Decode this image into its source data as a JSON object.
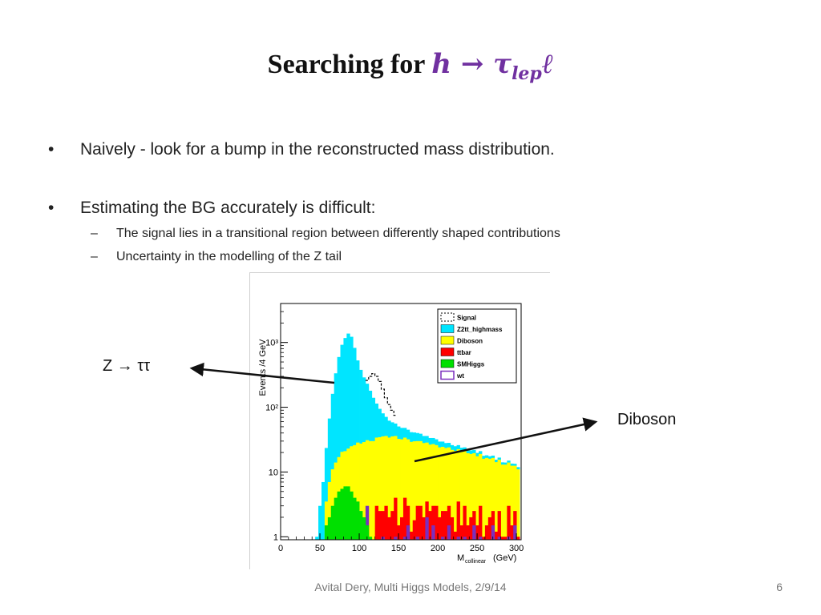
{
  "slide": {
    "title_text": "Searching for ",
    "title_math": "h → τ",
    "title_math_sub": "lep",
    "title_math_tail": "ℓ",
    "bullets": [
      {
        "marker": "•",
        "text": "Naively - look for a bump in the reconstructed mass distribution."
      },
      {
        "marker": "•",
        "text": "Estimating the BG accurately is difficult:"
      }
    ],
    "sub_bullets": [
      {
        "marker": "–",
        "text": "The signal lies in a transitional region between differently shaped contributions"
      },
      {
        "marker": "–",
        "text": "Uncertainty in the modelling of the Z tail"
      }
    ],
    "callout_left": "Z → ττ",
    "callout_right": "Diboson",
    "footer": "Avital Dery, Multi Higgs Models, 2/9/14",
    "page_number": "6"
  },
  "chart_data": {
    "type": "bar",
    "stacked": true,
    "ylabel": "Events /4 GeV",
    "xlabel_main": "M",
    "xlabel_sub": "collinear",
    "xlabel_unit": "(GeV)",
    "y_scale": "log",
    "xlim": [
      0,
      306
    ],
    "ylim": [
      0.9,
      4000
    ],
    "x_ticks": [
      0,
      50,
      100,
      150,
      200,
      250,
      300
    ],
    "y_ticks": [
      {
        "value": 1,
        "label": "1"
      },
      {
        "value": 10,
        "label": "10"
      },
      {
        "value": 100,
        "label": "10²"
      },
      {
        "value": 1000,
        "label": "10³"
      }
    ],
    "bin_width": 4,
    "x": [
      40,
      44,
      48,
      52,
      56,
      60,
      64,
      68,
      72,
      76,
      80,
      84,
      88,
      92,
      96,
      100,
      104,
      108,
      112,
      116,
      120,
      124,
      128,
      132,
      136,
      140,
      144,
      148,
      152,
      156,
      160,
      164,
      168,
      172,
      176,
      180,
      184,
      188,
      192,
      196,
      200,
      204,
      208,
      212,
      216,
      220,
      224,
      228,
      232,
      236,
      240,
      244,
      248,
      252,
      256,
      260,
      264,
      268,
      272,
      276,
      280,
      284,
      288,
      292,
      296,
      300
    ],
    "legend": {
      "position": "top-right"
    },
    "series": [
      {
        "name": "SMHiggs",
        "color": "#00e000",
        "values": [
          0,
          0,
          0,
          0,
          1.5,
          2,
          3,
          4,
          5,
          5.5,
          6,
          6,
          5,
          4,
          3.5,
          2.5,
          2,
          1.5,
          1,
          0,
          0,
          0,
          0,
          0,
          0,
          0,
          0,
          0,
          0,
          0,
          0,
          0,
          0,
          0,
          0,
          0,
          0,
          0,
          0,
          0,
          0,
          0,
          0,
          0,
          0,
          0,
          0,
          0,
          0,
          0,
          0,
          0,
          0,
          0,
          0,
          0,
          0,
          0,
          0,
          0,
          0,
          0,
          0,
          0,
          0,
          0
        ]
      },
      {
        "name": "wt",
        "color": "#7b2fbe",
        "values": [
          0,
          0,
          0,
          0,
          0,
          0,
          0,
          0,
          0,
          0,
          0,
          0,
          0,
          0,
          0,
          0,
          0,
          1.5,
          0,
          0,
          0,
          0,
          1,
          0,
          0,
          0,
          1,
          0,
          0,
          1,
          1.5,
          0,
          0,
          1,
          0,
          0,
          2,
          0,
          1.5,
          0,
          0,
          1,
          0,
          1.5,
          0,
          0,
          1,
          0,
          1,
          0,
          0,
          1.5,
          0,
          1,
          0,
          0,
          0,
          1.5,
          0,
          1,
          0,
          0,
          1,
          0,
          1.5,
          0
        ]
      },
      {
        "name": "ttbar",
        "color": "#ff0000",
        "values": [
          0,
          0,
          0,
          0,
          0,
          0,
          0,
          0,
          0,
          0,
          0,
          0,
          0,
          0,
          0,
          0,
          0,
          0,
          0,
          0,
          3,
          2.5,
          1.5,
          3,
          2,
          2.5,
          3,
          1.5,
          2,
          3,
          1.5,
          1.2,
          1.8,
          2,
          3,
          2,
          1.5,
          2.5,
          1.5,
          3,
          2,
          1.5,
          2.5,
          1.5,
          2,
          1.2,
          2.5,
          1.5,
          2,
          1.5,
          2,
          1,
          1.5,
          2,
          1,
          1.5,
          2,
          1,
          1.2,
          1.5,
          1,
          1,
          2,
          1.5,
          1,
          1
        ]
      },
      {
        "name": "Diboson",
        "color": "#ffff00",
        "values": [
          0,
          0,
          0,
          0,
          2,
          5,
          8,
          10,
          12,
          15,
          15,
          17,
          20,
          22,
          25,
          25,
          27,
          28,
          29,
          30,
          31,
          32,
          33,
          33,
          32,
          33,
          32,
          31,
          30,
          30,
          29,
          28,
          28,
          27,
          27,
          26,
          25,
          24,
          24,
          23,
          22,
          22,
          21,
          21,
          20,
          20,
          19,
          19,
          18,
          18,
          17,
          17,
          16,
          16,
          15,
          15,
          14,
          14,
          13,
          13,
          12,
          12,
          11,
          11,
          10,
          10
        ]
      },
      {
        "name": "Z2tt_highmass",
        "color": "#00e5ff",
        "values": [
          0,
          1,
          3,
          7,
          20,
          60,
          150,
          320,
          580,
          900,
          1150,
          1350,
          1200,
          800,
          500,
          350,
          260,
          200,
          150,
          110,
          80,
          60,
          45,
          35,
          28,
          23,
          20,
          18,
          16,
          14,
          13,
          12,
          11,
          10,
          9,
          8,
          7.5,
          7,
          6.5,
          6,
          5.5,
          5,
          4.5,
          4.2,
          4,
          3.8,
          3.5,
          3.2,
          3,
          2.8,
          2.6,
          2.4,
          2.2,
          2,
          1.8,
          1.6,
          1.5,
          1.4,
          1.3,
          1.2,
          1.1,
          1,
          1,
          1,
          0.9,
          0.9
        ]
      },
      {
        "name": "Signal",
        "color": "#000000",
        "style": "dashed-outline",
        "bins": [
          {
            "x": 108,
            "y": 260
          },
          {
            "x": 112,
            "y": 300
          },
          {
            "x": 116,
            "y": 330
          },
          {
            "x": 120,
            "y": 300
          },
          {
            "x": 124,
            "y": 250
          },
          {
            "x": 128,
            "y": 190
          },
          {
            "x": 132,
            "y": 140
          },
          {
            "x": 136,
            "y": 110
          },
          {
            "x": 140,
            "y": 90
          },
          {
            "x": 144,
            "y": 75
          }
        ]
      }
    ]
  }
}
